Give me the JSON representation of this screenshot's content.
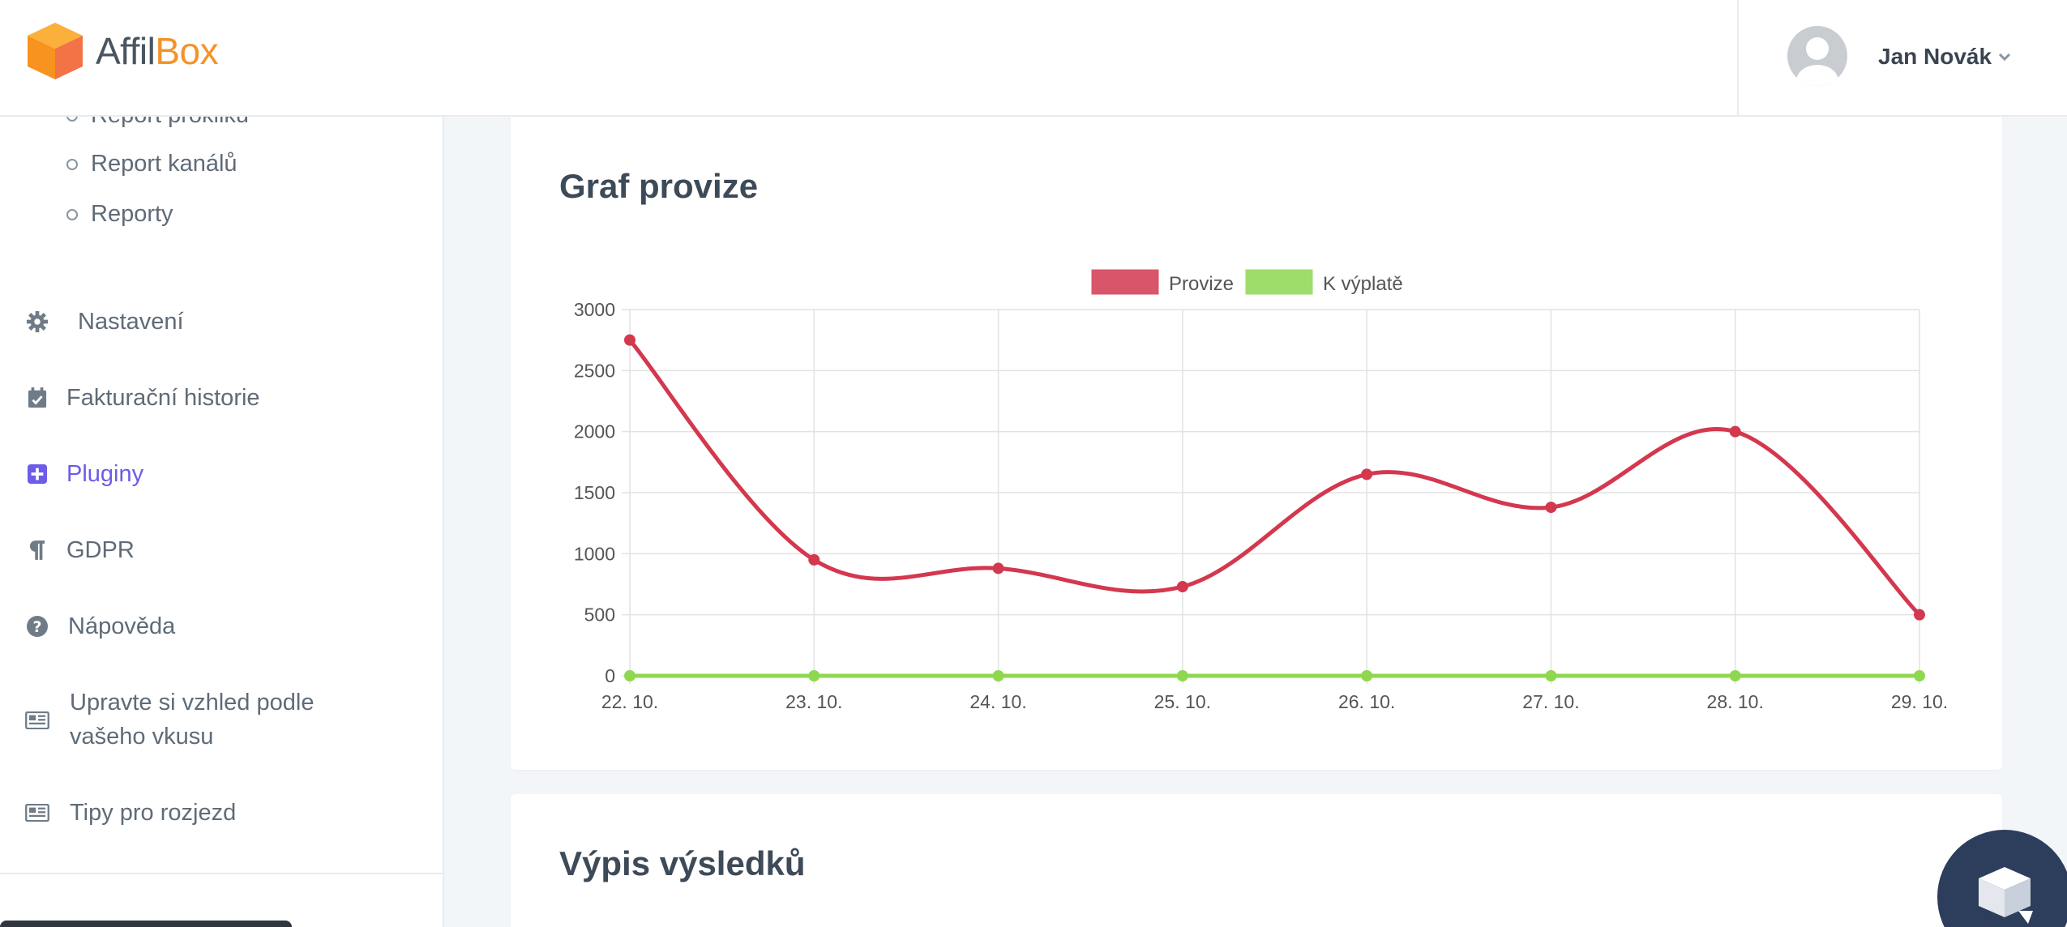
{
  "brand": {
    "name_part1": "Affil",
    "name_part2": "Box",
    "accent": "#f3932a"
  },
  "user": {
    "name": "Jan Novák",
    "avatar_icon": "user-avatar-icon",
    "caret_icon": "chevron-down-icon"
  },
  "sidebar": {
    "sub_items": [
      {
        "label": "Report prokliků"
      },
      {
        "label": "Report kanálů"
      },
      {
        "label": "Reporty"
      }
    ],
    "items": [
      {
        "label": "Nastavení",
        "icon": "gear-icon"
      },
      {
        "label": "Fakturační historie",
        "icon": "calendar-check-icon"
      },
      {
        "label": "Pluginy",
        "icon": "plus-square-icon",
        "active": true
      },
      {
        "label": "GDPR",
        "icon": "paragraph-icon"
      },
      {
        "label": "Nápověda",
        "icon": "question-circle-icon"
      },
      {
        "label_line1": "Upravte si vzhled podle",
        "label_line2": "vašeho vkusu",
        "icon": "newspaper-icon"
      },
      {
        "label": "Tipy pro rozjezd",
        "icon": "newspaper-icon"
      }
    ]
  },
  "chart_card": {
    "title": "Graf provize"
  },
  "results_card": {
    "title": "Výpis výsledků"
  },
  "chart_data": {
    "type": "line",
    "categories": [
      "22. 10.",
      "23. 10.",
      "24. 10.",
      "25. 10.",
      "26. 10.",
      "27. 10.",
      "28. 10.",
      "29. 10."
    ],
    "series": [
      {
        "name": "Provize",
        "color": "#d3384f",
        "values": [
          2750,
          950,
          880,
          730,
          1650,
          1380,
          2000,
          500
        ]
      },
      {
        "name": "K výplatě",
        "color": "#8ed84f",
        "values": [
          0,
          0,
          0,
          0,
          0,
          0,
          0,
          0
        ]
      }
    ],
    "ylim": [
      0,
      3000
    ],
    "yticks": [
      0,
      500,
      1000,
      1500,
      2000,
      2500,
      3000
    ],
    "grid": true,
    "legend": "top-center"
  },
  "chat_widget": {
    "icon": "chat-cube-icon"
  }
}
